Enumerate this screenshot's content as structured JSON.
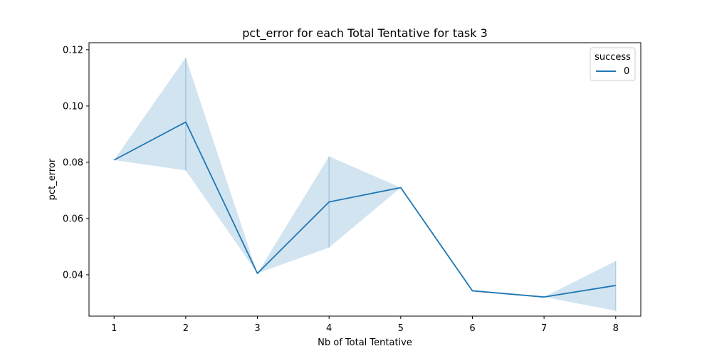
{
  "chart_data": {
    "type": "line",
    "title": "pct_error for each Total Tentative for task 3",
    "xlabel": "Nb of Total Tentative",
    "ylabel": "pct_error",
    "xlim": [
      0.65,
      8.35
    ],
    "ylim": [
      0.0253,
      0.1225
    ],
    "x_ticks": [
      1,
      2,
      3,
      4,
      5,
      6,
      7,
      8
    ],
    "y_ticks": [
      0.04,
      0.06,
      0.08,
      0.1,
      0.12
    ],
    "y_tick_labels": [
      "0.04",
      "0.06",
      "0.08",
      "0.10",
      "0.12"
    ],
    "grid": false,
    "legend": {
      "title": "success",
      "placement": "top-right"
    },
    "series": [
      {
        "name": "0",
        "color": "#1f77b4",
        "x": [
          1,
          2,
          3,
          4,
          5,
          6,
          7,
          8
        ],
        "y": [
          0.0808,
          0.0943,
          0.0405,
          0.0659,
          0.071,
          0.0343,
          0.0321,
          0.0362
        ],
        "ci_low": [
          0.0808,
          0.0771,
          0.0405,
          0.0497,
          0.071,
          0.0343,
          0.0321,
          0.0272
        ],
        "ci_high": [
          0.0808,
          0.1172,
          0.0405,
          0.0821,
          0.071,
          0.0343,
          0.0321,
          0.0449
        ]
      }
    ]
  }
}
